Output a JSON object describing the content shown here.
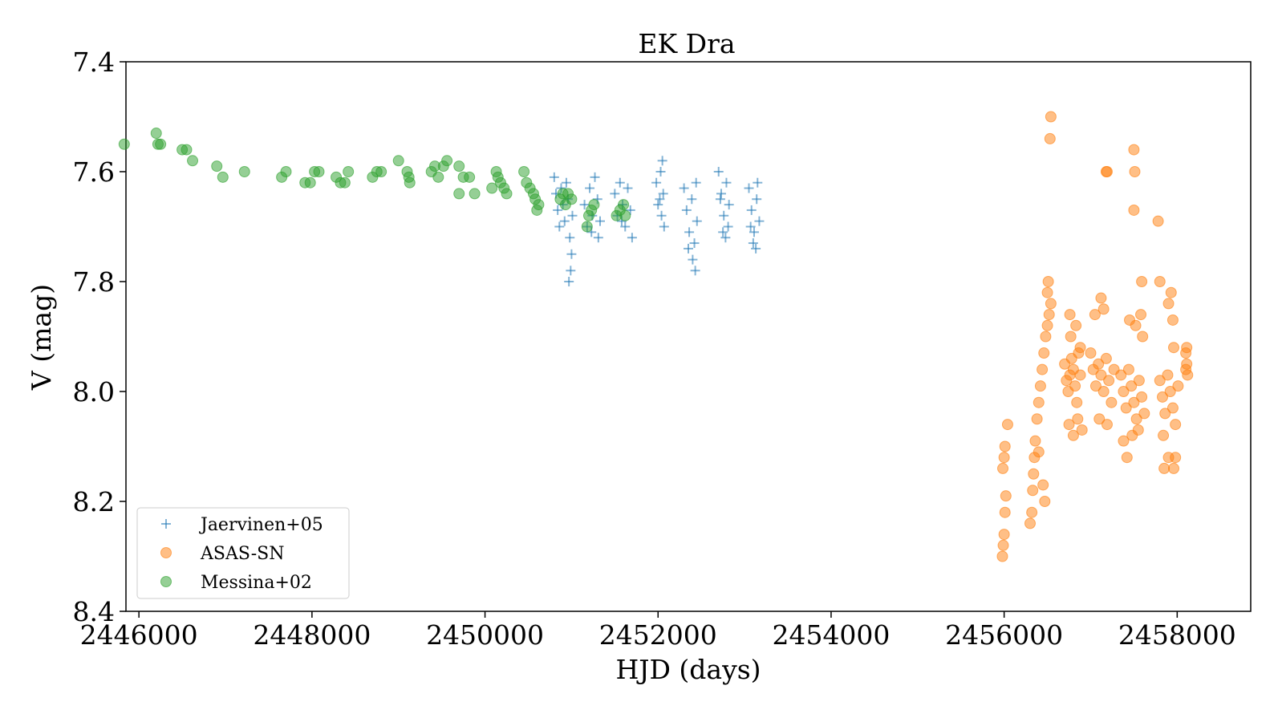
{
  "chart_data": {
    "type": "scatter",
    "title": "EK Dra",
    "xlabel": "HJD (days)",
    "ylabel": "V (mag)",
    "xlim": [
      2445850,
      2458850
    ],
    "ylim": [
      7.4,
      8.4
    ],
    "y_inverted": true,
    "x_ticks": [
      2446000,
      2448000,
      2450000,
      2452000,
      2454000,
      2456000,
      2458000
    ],
    "x_tick_labels": [
      "2446000",
      "2448000",
      "2450000",
      "2452000",
      "2454000",
      "2456000",
      "2458000"
    ],
    "y_ticks": [
      7.4,
      7.6,
      7.8,
      8.0,
      8.2,
      8.4
    ],
    "y_tick_labels": [
      "7.4",
      "7.6",
      "7.8",
      "8.0",
      "8.2",
      "8.4"
    ],
    "grid": false,
    "legend_position": "lower-left",
    "series": [
      {
        "name": "Jaervinen+05",
        "marker": "plus",
        "color": "#1f77b4",
        "points": [
          [
            2450800,
            7.61
          ],
          [
            2450820,
            7.64
          ],
          [
            2450840,
            7.67
          ],
          [
            2450860,
            7.7
          ],
          [
            2450880,
            7.63
          ],
          [
            2450900,
            7.66
          ],
          [
            2450920,
            7.69
          ],
          [
            2450940,
            7.62
          ],
          [
            2450960,
            7.65
          ],
          [
            2450980,
            7.72
          ],
          [
            2451000,
            7.75
          ],
          [
            2450990,
            7.78
          ],
          [
            2450970,
            7.8
          ],
          [
            2451010,
            7.68
          ],
          [
            2451150,
            7.66
          ],
          [
            2451180,
            7.7
          ],
          [
            2451210,
            7.63
          ],
          [
            2451240,
            7.68
          ],
          [
            2451270,
            7.61
          ],
          [
            2451300,
            7.65
          ],
          [
            2451330,
            7.69
          ],
          [
            2451310,
            7.72
          ],
          [
            2451230,
            7.71
          ],
          [
            2451500,
            7.64
          ],
          [
            2451530,
            7.68
          ],
          [
            2451560,
            7.62
          ],
          [
            2451590,
            7.66
          ],
          [
            2451620,
            7.7
          ],
          [
            2451650,
            7.63
          ],
          [
            2451680,
            7.67
          ],
          [
            2451700,
            7.72
          ],
          [
            2451580,
            7.69
          ],
          [
            2451980,
            7.62
          ],
          [
            2452000,
            7.66
          ],
          [
            2452030,
            7.6
          ],
          [
            2452050,
            7.58
          ],
          [
            2452060,
            7.64
          ],
          [
            2452040,
            7.68
          ],
          [
            2452070,
            7.7
          ],
          [
            2452020,
            7.65
          ],
          [
            2452300,
            7.63
          ],
          [
            2452330,
            7.67
          ],
          [
            2452360,
            7.71
          ],
          [
            2452390,
            7.65
          ],
          [
            2452420,
            7.73
          ],
          [
            2452450,
            7.69
          ],
          [
            2452400,
            7.76
          ],
          [
            2452430,
            7.78
          ],
          [
            2452350,
            7.74
          ],
          [
            2452440,
            7.62
          ],
          [
            2452700,
            7.6
          ],
          [
            2452730,
            7.64
          ],
          [
            2452760,
            7.68
          ],
          [
            2452790,
            7.62
          ],
          [
            2452820,
            7.66
          ],
          [
            2452750,
            7.71
          ],
          [
            2452780,
            7.72
          ],
          [
            2452810,
            7.7
          ],
          [
            2452720,
            7.65
          ],
          [
            2453050,
            7.63
          ],
          [
            2453080,
            7.67
          ],
          [
            2453110,
            7.71
          ],
          [
            2453140,
            7.65
          ],
          [
            2453170,
            7.69
          ],
          [
            2453100,
            7.73
          ],
          [
            2453130,
            7.74
          ],
          [
            2453150,
            7.62
          ],
          [
            2453070,
            7.7
          ]
        ]
      },
      {
        "name": "ASAS-SN",
        "marker": "circle",
        "color": "#ff7f0e",
        "points": [
          [
            2455980,
            8.3
          ],
          [
            2455990,
            8.28
          ],
          [
            2456000,
            8.26
          ],
          [
            2456010,
            8.22
          ],
          [
            2456020,
            8.19
          ],
          [
            2455985,
            8.14
          ],
          [
            2456000,
            8.12
          ],
          [
            2456010,
            8.1
          ],
          [
            2456040,
            8.06
          ],
          [
            2456300,
            8.24
          ],
          [
            2456320,
            8.22
          ],
          [
            2456330,
            8.18
          ],
          [
            2456340,
            8.15
          ],
          [
            2456350,
            8.12
          ],
          [
            2456360,
            8.09
          ],
          [
            2456380,
            8.05
          ],
          [
            2456400,
            8.02
          ],
          [
            2456420,
            7.99
          ],
          [
            2456440,
            7.96
          ],
          [
            2456460,
            7.93
          ],
          [
            2456480,
            7.9
          ],
          [
            2456500,
            7.88
          ],
          [
            2456520,
            7.86
          ],
          [
            2456540,
            7.84
          ],
          [
            2456500,
            7.82
          ],
          [
            2456510,
            7.8
          ],
          [
            2456450,
            8.17
          ],
          [
            2456470,
            8.2
          ],
          [
            2456400,
            8.11
          ],
          [
            2456530,
            7.54
          ],
          [
            2456540,
            7.5
          ],
          [
            2456700,
            7.95
          ],
          [
            2456720,
            7.98
          ],
          [
            2456740,
            8.0
          ],
          [
            2456760,
            7.97
          ],
          [
            2456780,
            7.94
          ],
          [
            2456800,
            7.96
          ],
          [
            2456820,
            7.99
          ],
          [
            2456840,
            8.02
          ],
          [
            2456860,
            7.93
          ],
          [
            2456880,
            7.97
          ],
          [
            2456750,
            8.06
          ],
          [
            2456800,
            8.08
          ],
          [
            2456850,
            8.05
          ],
          [
            2456900,
            8.07
          ],
          [
            2456770,
            7.9
          ],
          [
            2456830,
            7.88
          ],
          [
            2456880,
            7.92
          ],
          [
            2456760,
            7.86
          ],
          [
            2457000,
            7.93
          ],
          [
            2457030,
            7.96
          ],
          [
            2457060,
            7.99
          ],
          [
            2457090,
            7.95
          ],
          [
            2457120,
            7.97
          ],
          [
            2457150,
            8.0
          ],
          [
            2457180,
            7.94
          ],
          [
            2457210,
            7.98
          ],
          [
            2457240,
            8.02
          ],
          [
            2457270,
            7.96
          ],
          [
            2457100,
            8.05
          ],
          [
            2457050,
            7.86
          ],
          [
            2457150,
            7.85
          ],
          [
            2457190,
            8.06
          ],
          [
            2457120,
            7.83
          ],
          [
            2457180,
            7.6
          ],
          [
            2457190,
            7.6
          ],
          [
            2457350,
            7.97
          ],
          [
            2457380,
            8.0
          ],
          [
            2457410,
            8.03
          ],
          [
            2457440,
            7.96
          ],
          [
            2457470,
            7.99
          ],
          [
            2457500,
            8.02
          ],
          [
            2457530,
            8.05
          ],
          [
            2457560,
            7.98
          ],
          [
            2457590,
            8.01
          ],
          [
            2457620,
            8.04
          ],
          [
            2457380,
            8.09
          ],
          [
            2457420,
            8.12
          ],
          [
            2457480,
            8.08
          ],
          [
            2457550,
            8.07
          ],
          [
            2457600,
            7.9
          ],
          [
            2457450,
            7.87
          ],
          [
            2457520,
            7.88
          ],
          [
            2457580,
            7.86
          ],
          [
            2457500,
            7.56
          ],
          [
            2457510,
            7.6
          ],
          [
            2457500,
            7.67
          ],
          [
            2457590,
            7.8
          ],
          [
            2457800,
            7.98
          ],
          [
            2457830,
            8.01
          ],
          [
            2457860,
            8.04
          ],
          [
            2457890,
            7.97
          ],
          [
            2457920,
            8.0
          ],
          [
            2457950,
            8.03
          ],
          [
            2457980,
            8.06
          ],
          [
            2458010,
            7.99
          ],
          [
            2457840,
            8.08
          ],
          [
            2457900,
            8.12
          ],
          [
            2457960,
            8.14
          ],
          [
            2457850,
            8.14
          ],
          [
            2457980,
            8.12
          ],
          [
            2457950,
            7.87
          ],
          [
            2457900,
            7.84
          ],
          [
            2457930,
            7.82
          ],
          [
            2457960,
            7.92
          ],
          [
            2457800,
            7.8
          ],
          [
            2457780,
            7.69
          ],
          [
            2458100,
            7.93
          ],
          [
            2458110,
            7.95
          ],
          [
            2458120,
            7.97
          ],
          [
            2458100,
            7.96
          ],
          [
            2458110,
            7.92
          ]
        ]
      },
      {
        "name": "Messina+02",
        "marker": "circle",
        "color": "#2ca02c",
        "points": [
          [
            2445830,
            7.55
          ],
          [
            2446200,
            7.53
          ],
          [
            2446220,
            7.55
          ],
          [
            2446250,
            7.55
          ],
          [
            2446500,
            7.56
          ],
          [
            2446550,
            7.56
          ],
          [
            2446620,
            7.58
          ],
          [
            2446900,
            7.59
          ],
          [
            2446970,
            7.61
          ],
          [
            2447220,
            7.6
          ],
          [
            2447650,
            7.61
          ],
          [
            2447700,
            7.6
          ],
          [
            2447920,
            7.62
          ],
          [
            2447980,
            7.62
          ],
          [
            2448030,
            7.6
          ],
          [
            2448080,
            7.6
          ],
          [
            2448280,
            7.61
          ],
          [
            2448330,
            7.62
          ],
          [
            2448380,
            7.62
          ],
          [
            2448420,
            7.6
          ],
          [
            2448700,
            7.61
          ],
          [
            2448750,
            7.6
          ],
          [
            2448800,
            7.6
          ],
          [
            2449000,
            7.58
          ],
          [
            2449100,
            7.6
          ],
          [
            2449120,
            7.61
          ],
          [
            2449130,
            7.62
          ],
          [
            2449380,
            7.6
          ],
          [
            2449420,
            7.59
          ],
          [
            2449460,
            7.61
          ],
          [
            2449520,
            7.59
          ],
          [
            2449560,
            7.58
          ],
          [
            2449700,
            7.59
          ],
          [
            2449750,
            7.61
          ],
          [
            2449820,
            7.61
          ],
          [
            2449700,
            7.64
          ],
          [
            2449880,
            7.64
          ],
          [
            2450080,
            7.63
          ],
          [
            2450130,
            7.6
          ],
          [
            2450150,
            7.61
          ],
          [
            2450180,
            7.62
          ],
          [
            2450220,
            7.63
          ],
          [
            2450250,
            7.64
          ],
          [
            2450450,
            7.6
          ],
          [
            2450480,
            7.62
          ],
          [
            2450520,
            7.63
          ],
          [
            2450560,
            7.64
          ],
          [
            2450580,
            7.65
          ],
          [
            2450600,
            7.67
          ],
          [
            2450620,
            7.66
          ],
          [
            2450870,
            7.65
          ],
          [
            2450900,
            7.64
          ],
          [
            2450930,
            7.66
          ],
          [
            2450960,
            7.64
          ],
          [
            2451000,
            7.65
          ],
          [
            2451180,
            7.7
          ],
          [
            2451200,
            7.68
          ],
          [
            2451230,
            7.67
          ],
          [
            2451260,
            7.66
          ],
          [
            2451520,
            7.68
          ],
          [
            2451560,
            7.67
          ],
          [
            2451600,
            7.66
          ],
          [
            2451620,
            7.68
          ]
        ]
      }
    ]
  }
}
